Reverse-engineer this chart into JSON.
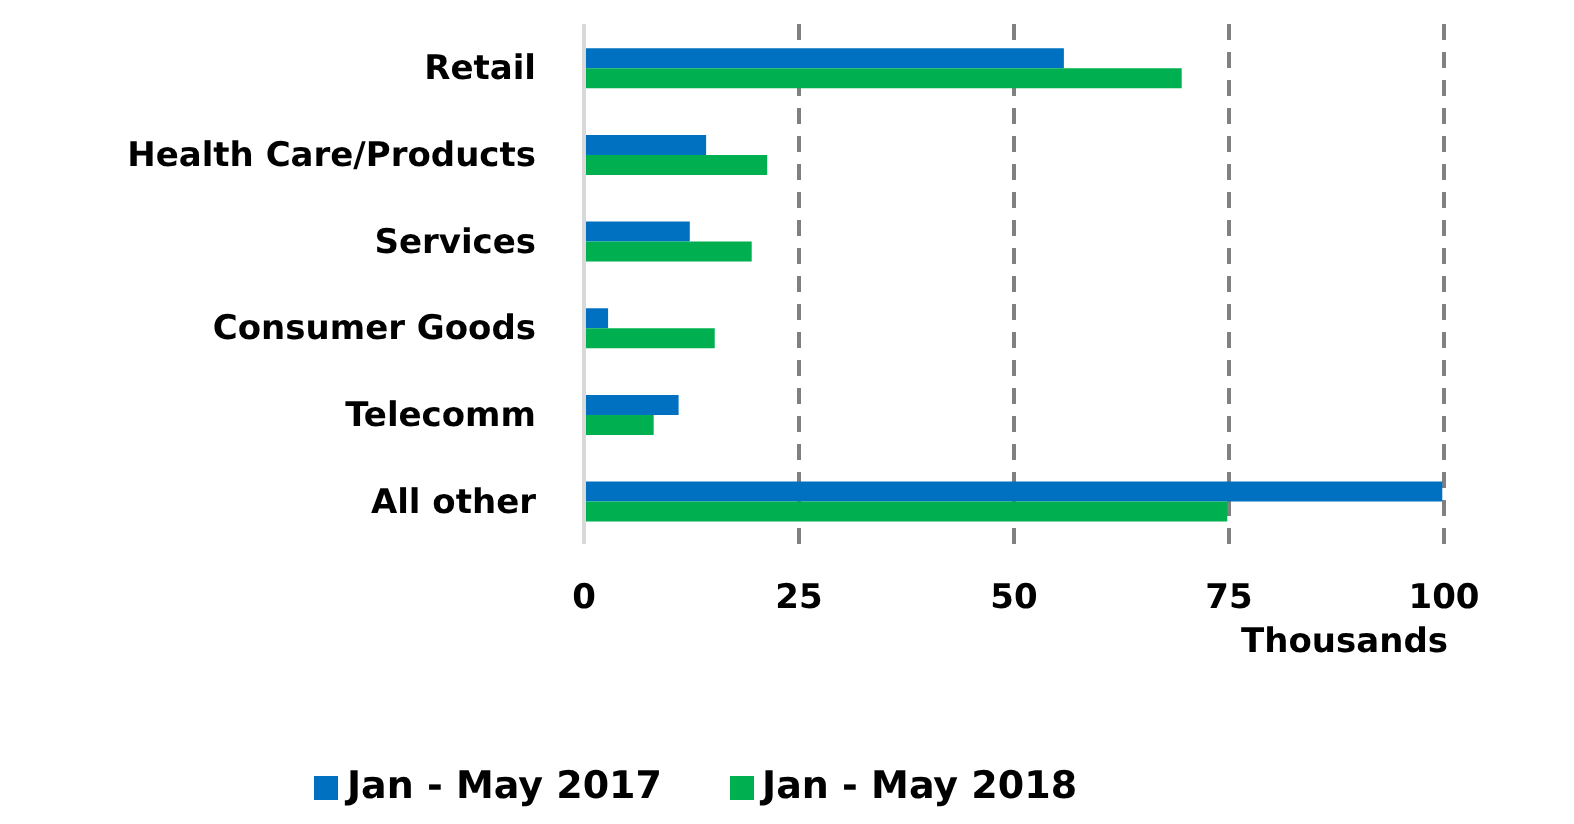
{
  "chart_data": {
    "type": "bar",
    "orientation": "horizontal",
    "categories": [
      "Retail",
      "Health Care/Products",
      "Services",
      "Consumer Goods",
      "Telecomm",
      "All other"
    ],
    "series": [
      {
        "name": "Jan - May 2017",
        "color": "#0070c0",
        "values": [
          55.8,
          14.2,
          12.3,
          2.8,
          11.0,
          99.8
        ]
      },
      {
        "name": "Jan - May 2018",
        "color": "#00b050",
        "values": [
          69.5,
          21.3,
          19.5,
          15.2,
          8.1,
          74.8
        ]
      }
    ],
    "xlim": [
      0,
      100
    ],
    "xticks": [
      0,
      25,
      50,
      75,
      100
    ],
    "xlabel": "Thousands",
    "grid": "x",
    "legend": "bottom"
  }
}
